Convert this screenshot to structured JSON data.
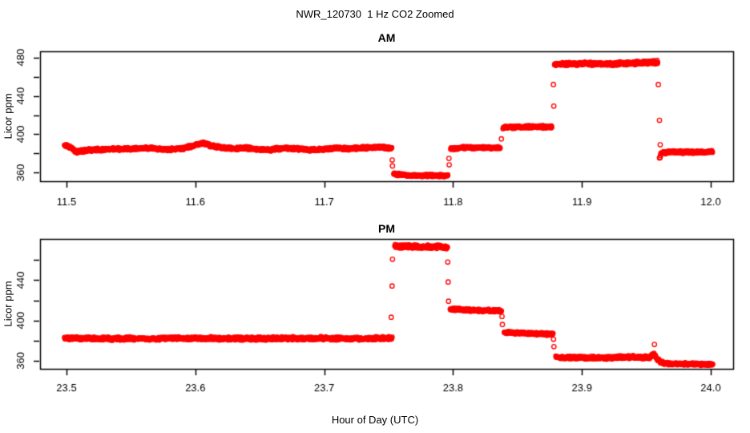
{
  "title": "NWR_120730  1 Hz CO2 Zoomed",
  "xlabel": "Hour of Day (UTC)",
  "colors": {
    "points": "#FF0000",
    "axis": "#000000",
    "background": "#FFFFFF"
  },
  "chart_data": [
    {
      "type": "scatter",
      "title": "AM",
      "ylabel": "Licor ppm",
      "marker": "open-circle",
      "sample_rate_hz": 1,
      "xlim": [
        11.4795,
        12.0174
      ],
      "ylim": [
        351.1,
        486.4
      ],
      "x_ticks": [
        {
          "v": 11.5,
          "label": "11.5"
        },
        {
          "v": 11.6,
          "label": "11.6"
        },
        {
          "v": 11.7,
          "label": "11.7"
        },
        {
          "v": 11.8,
          "label": "11.8"
        },
        {
          "v": 11.9,
          "label": "11.9"
        },
        {
          "v": 12.0,
          "label": "12.0"
        }
      ],
      "y_ticks": [
        {
          "v": 360,
          "label": "360"
        },
        {
          "v": 380,
          "label": ""
        },
        {
          "v": 400,
          "label": "400"
        },
        {
          "v": 420,
          "label": ""
        },
        {
          "v": 440,
          "label": "440"
        },
        {
          "v": 460,
          "label": ""
        },
        {
          "v": 480,
          "label": "480"
        }
      ],
      "segments": [
        {
          "noise": 1.0,
          "nodes": [
            [
              11.4985,
              388.2
            ],
            [
              11.503,
              386.5
            ],
            [
              11.508,
              381.6
            ],
            [
              11.516,
              383.4
            ],
            [
              11.532,
              384.4
            ],
            [
              11.55,
              384.9
            ],
            [
              11.565,
              385.4
            ],
            [
              11.578,
              384.1
            ],
            [
              11.59,
              385.2
            ],
            [
              11.6,
              388.6
            ],
            [
              11.606,
              391.0
            ],
            [
              11.613,
              387.8
            ],
            [
              11.621,
              386.0
            ],
            [
              11.63,
              384.9
            ],
            [
              11.638,
              386.2
            ],
            [
              11.648,
              384.1
            ],
            [
              11.659,
              384.0
            ],
            [
              11.668,
              385.7
            ],
            [
              11.678,
              385.1
            ],
            [
              11.689,
              383.9
            ],
            [
              11.7,
              384.3
            ],
            [
              11.71,
              385.7
            ],
            [
              11.72,
              385.0
            ],
            [
              11.731,
              386.0
            ],
            [
              11.742,
              386.5
            ],
            [
              11.7525,
              385.6
            ]
          ]
        },
        {
          "noise": 0.9,
          "nodes": [
            [
              11.754,
              358.6
            ],
            [
              11.766,
              357.0
            ],
            [
              11.7962,
              356.9
            ]
          ]
        },
        {
          "noise": 0.9,
          "nodes": [
            [
              11.7982,
              385.4
            ],
            [
              11.81,
              386.0
            ],
            [
              11.8368,
              385.9
            ]
          ]
        },
        {
          "noise": 0.9,
          "nodes": [
            [
              11.8388,
              407.0
            ],
            [
              11.858,
              407.8
            ],
            [
              11.8768,
              407.6
            ]
          ]
        },
        {
          "noise": 1.3,
          "nodes": [
            [
              11.8788,
              472.9
            ],
            [
              11.9,
              473.6
            ],
            [
              11.92,
              473.2
            ],
            [
              11.942,
              474.2
            ],
            [
              11.9588,
              475.1
            ]
          ]
        },
        {
          "noise": 1.0,
          "nodes": [
            [
              11.9602,
              374.8
            ],
            [
              11.9615,
              380.2
            ],
            [
              11.97,
              381.6
            ],
            [
              11.988,
              381.3
            ],
            [
              12.0015,
              381.9
            ]
          ]
        }
      ],
      "outliers": [
        [
          11.7528,
          373.2
        ],
        [
          11.753,
          367.0
        ],
        [
          11.7968,
          374.8
        ],
        [
          11.797,
          368.2
        ],
        [
          11.8375,
          395.2
        ],
        [
          11.8779,
          451.8
        ],
        [
          11.8782,
          429.3
        ],
        [
          11.9593,
          451.8
        ],
        [
          11.9602,
          414.5
        ],
        [
          11.9608,
          389.0
        ]
      ]
    },
    {
      "type": "scatter",
      "title": "PM",
      "ylabel": "Licor ppm",
      "marker": "open-circle",
      "sample_rate_hz": 1,
      "xlim": [
        23.4795,
        24.0174
      ],
      "ylim": [
        352.0,
        480.9
      ],
      "x_ticks": [
        {
          "v": 23.5,
          "label": "23.5"
        },
        {
          "v": 23.6,
          "label": "23.6"
        },
        {
          "v": 23.7,
          "label": "23.7"
        },
        {
          "v": 23.8,
          "label": "23.8"
        },
        {
          "v": 23.9,
          "label": "23.9"
        },
        {
          "v": 24.0,
          "label": "24.0"
        }
      ],
      "y_ticks": [
        {
          "v": 360,
          "label": "360"
        },
        {
          "v": 380,
          "label": ""
        },
        {
          "v": 400,
          "label": "400"
        },
        {
          "v": 420,
          "label": ""
        },
        {
          "v": 440,
          "label": "440"
        },
        {
          "v": 460,
          "label": ""
        }
      ],
      "segments": [
        {
          "noise": 1.1,
          "nodes": [
            [
              23.4985,
              382.3
            ],
            [
              23.55,
              382.0
            ],
            [
              23.6,
              382.4
            ],
            [
              23.65,
              382.0
            ],
            [
              23.7,
              382.4
            ],
            [
              23.73,
              382.0
            ],
            [
              23.7528,
              382.6
            ]
          ]
        },
        {
          "noise": 1.3,
          "nodes": [
            [
              23.7548,
              473.6
            ],
            [
              23.772,
              473.1
            ],
            [
              23.7958,
              472.9
            ]
          ]
        },
        {
          "noise": 1.0,
          "nodes": [
            [
              23.7978,
              411.2
            ],
            [
              23.812,
              410.4
            ],
            [
              23.8378,
              409.4
            ]
          ]
        },
        {
          "noise": 0.9,
          "nodes": [
            [
              23.8398,
              388.2
            ],
            [
              23.86,
              387.2
            ],
            [
              23.8778,
              386.4
            ]
          ]
        },
        {
          "noise": 1.0,
          "nodes": [
            [
              23.8798,
              363.4
            ],
            [
              23.912,
              363.0
            ],
            [
              23.94,
              363.6
            ],
            [
              23.9522,
              363.2
            ],
            [
              23.9556,
              367.3
            ],
            [
              23.9578,
              362.8
            ],
            [
              23.9606,
              359.0
            ],
            [
              23.9645,
              357.4
            ]
          ]
        },
        {
          "noise": 0.9,
          "nodes": [
            [
              23.9648,
              357.2
            ],
            [
              23.982,
              356.8
            ],
            [
              24.0015,
              356.2
            ]
          ]
        }
      ],
      "outliers": [
        [
          23.752,
          403.2
        ],
        [
          23.7527,
          434.2
        ],
        [
          23.753,
          460.8
        ],
        [
          23.7959,
          458.0
        ],
        [
          23.7962,
          438.2
        ],
        [
          23.7965,
          419.1
        ],
        [
          23.838,
          404.0
        ],
        [
          23.8383,
          396.0
        ],
        [
          23.878,
          381.4
        ],
        [
          23.8783,
          374.0
        ],
        [
          23.9563,
          376.2
        ]
      ]
    }
  ]
}
